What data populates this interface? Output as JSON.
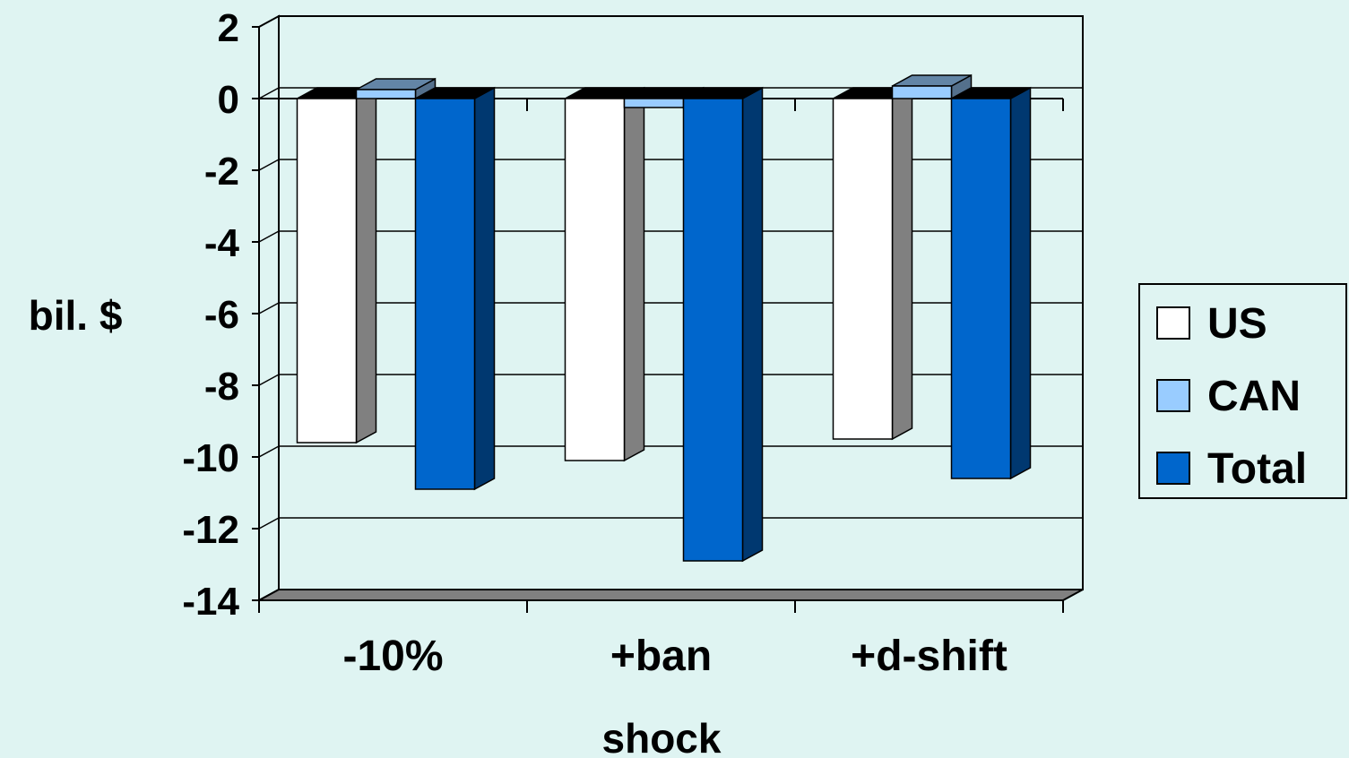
{
  "chart_data": {
    "type": "bar",
    "title": "",
    "xlabel": "shock",
    "ylabel": "bil. $",
    "ylim": [
      -14,
      2
    ],
    "yticks": [
      "2",
      "0",
      "-2",
      "-4",
      "-6",
      "-8",
      "-10",
      "-12",
      "-14"
    ],
    "categories": [
      "-10%",
      "+ban",
      "+d-shift"
    ],
    "series": [
      {
        "name": "US",
        "values": [
          -9.6,
          -10.1,
          -9.5
        ],
        "color": "#ffffff"
      },
      {
        "name": "CAN",
        "values": [
          0.25,
          -0.25,
          0.35
        ],
        "color": "#99ccff"
      },
      {
        "name": "Total",
        "values": [
          -10.9,
          -12.9,
          -10.6
        ],
        "color": "#0066cc"
      }
    ],
    "grid": true,
    "legend_position": "right",
    "style": "3d-clustered-column"
  }
}
